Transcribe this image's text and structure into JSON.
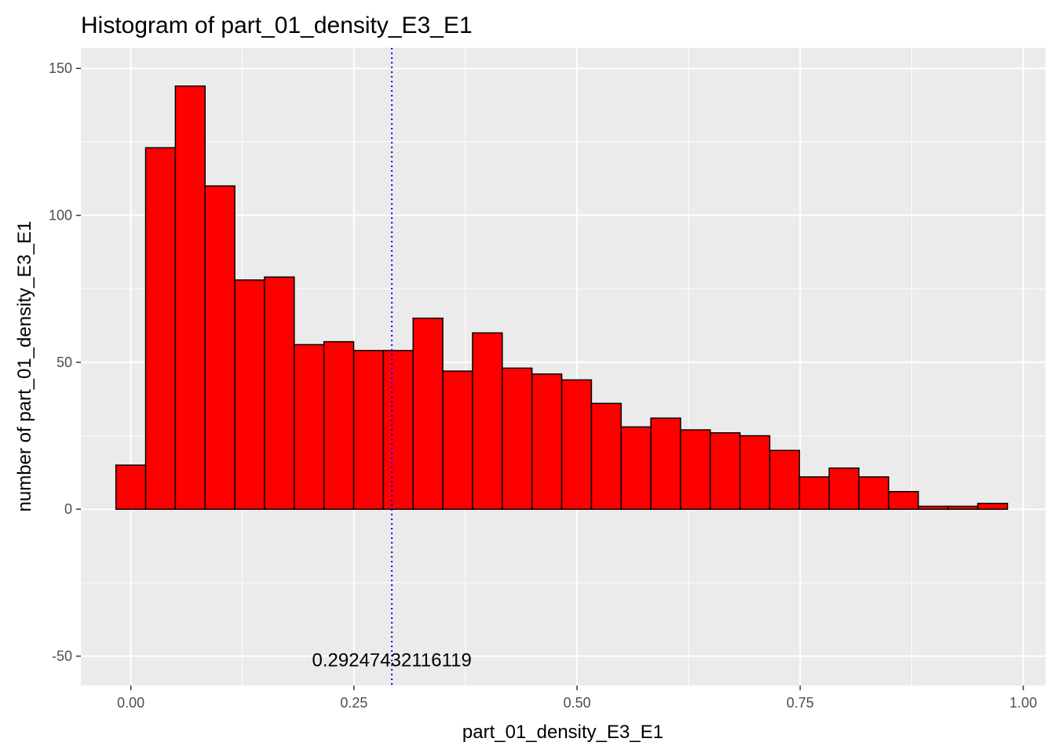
{
  "chart_data": {
    "type": "bar",
    "title": "Histogram of  part_01_density_E3_E1",
    "xlabel": "part_01_density_E3_E1",
    "ylabel": "number of  part_01_density_E3_E1",
    "xlim": [
      -0.056,
      1.025
    ],
    "ylim": [
      -60,
      157
    ],
    "x_ticks": [
      0.0,
      0.25,
      0.5,
      0.75,
      1.0
    ],
    "x_tick_labels": [
      "0.00",
      "0.25",
      "0.50",
      "0.75",
      "1.00"
    ],
    "y_ticks": [
      -50,
      0,
      50,
      100,
      150
    ],
    "y_tick_labels": [
      "-50",
      "0",
      "50",
      "100",
      "150"
    ],
    "grid": true,
    "bin_width": 0.0333,
    "bins_start": -0.0167,
    "values": [
      15,
      123,
      144,
      110,
      78,
      79,
      56,
      57,
      54,
      54,
      65,
      47,
      60,
      48,
      46,
      44,
      36,
      28,
      31,
      27,
      26,
      25,
      20,
      11,
      14,
      11,
      6,
      1,
      1,
      2
    ],
    "vline": {
      "x": 0.29247432116119,
      "color": "#0000ff",
      "style": "dotted"
    },
    "annotation": {
      "text": "0.29247432116119",
      "x": 0.29247432116119,
      "y": -51
    },
    "colors": {
      "bar_fill": "#ff0000",
      "bar_stroke": "#000000",
      "panel_bg": "#ebebeb",
      "grid_major": "#ffffff",
      "vline": "#0000ff"
    }
  }
}
